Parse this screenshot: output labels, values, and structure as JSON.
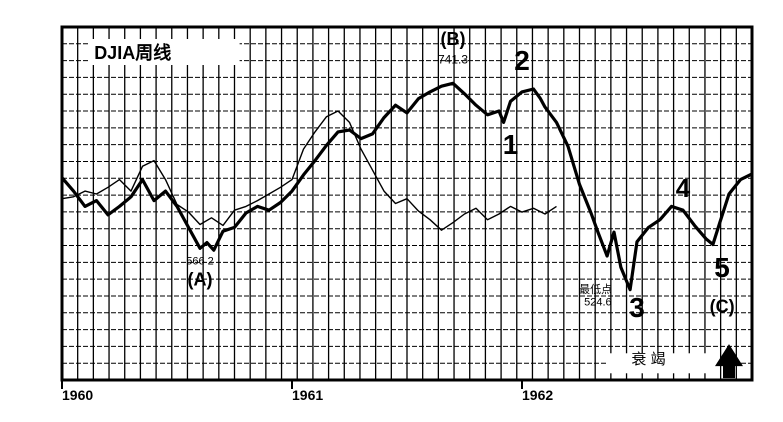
{
  "chart_data": {
    "type": "line",
    "title": "DJIA周线",
    "x_tick_labels": [
      "1960",
      "1961",
      "1962"
    ],
    "series": [
      {
        "values": [
          [
            1960.0,
            642
          ],
          [
            1960.05,
            628
          ],
          [
            1960.1,
            612
          ],
          [
            1960.15,
            618
          ],
          [
            1960.2,
            603
          ],
          [
            1960.25,
            612
          ],
          [
            1960.3,
            622
          ],
          [
            1960.35,
            640
          ],
          [
            1960.4,
            618
          ],
          [
            1960.45,
            628
          ],
          [
            1960.5,
            612
          ],
          [
            1960.55,
            590
          ],
          [
            1960.6,
            568
          ],
          [
            1960.63,
            574
          ],
          [
            1960.66,
            566
          ],
          [
            1960.7,
            586
          ],
          [
            1960.75,
            590
          ],
          [
            1960.8,
            605
          ],
          [
            1960.85,
            612
          ],
          [
            1960.9,
            608
          ],
          [
            1960.95,
            616
          ],
          [
            1961.0,
            628
          ],
          [
            1961.05,
            645
          ],
          [
            1961.1,
            660
          ],
          [
            1961.15,
            676
          ],
          [
            1961.2,
            690
          ],
          [
            1961.25,
            692
          ],
          [
            1961.3,
            683
          ],
          [
            1961.35,
            688
          ],
          [
            1961.4,
            705
          ],
          [
            1961.45,
            718
          ],
          [
            1961.5,
            710
          ],
          [
            1961.55,
            725
          ],
          [
            1961.6,
            732
          ],
          [
            1961.65,
            738
          ],
          [
            1961.7,
            741
          ],
          [
            1961.75,
            730
          ],
          [
            1961.8,
            718
          ],
          [
            1961.85,
            708
          ],
          [
            1961.9,
            712
          ],
          [
            1961.92,
            700
          ],
          [
            1961.95,
            722
          ],
          [
            1962.0,
            732
          ],
          [
            1962.05,
            735
          ],
          [
            1962.08,
            725
          ],
          [
            1962.1,
            716
          ],
          [
            1962.15,
            700
          ],
          [
            1962.2,
            675
          ],
          [
            1962.25,
            635
          ],
          [
            1962.3,
            605
          ],
          [
            1962.33,
            585
          ],
          [
            1962.37,
            560
          ],
          [
            1962.4,
            585
          ],
          [
            1962.43,
            548
          ],
          [
            1962.47,
            524.6
          ],
          [
            1962.5,
            575
          ],
          [
            1962.55,
            590
          ],
          [
            1962.6,
            598
          ],
          [
            1962.65,
            612
          ],
          [
            1962.7,
            608
          ],
          [
            1962.75,
            592
          ],
          [
            1962.8,
            578
          ],
          [
            1962.83,
            572
          ],
          [
            1962.86,
            595
          ],
          [
            1962.9,
            625
          ],
          [
            1962.95,
            640
          ],
          [
            1963.0,
            646
          ]
        ]
      },
      {
        "values": [
          [
            1960.0,
            620
          ],
          [
            1960.05,
            622
          ],
          [
            1960.1,
            628
          ],
          [
            1960.15,
            625
          ],
          [
            1960.2,
            632
          ],
          [
            1960.25,
            640
          ],
          [
            1960.3,
            628
          ],
          [
            1960.35,
            654
          ],
          [
            1960.4,
            660
          ],
          [
            1960.45,
            640
          ],
          [
            1960.5,
            614
          ],
          [
            1960.55,
            606
          ],
          [
            1960.6,
            593
          ],
          [
            1960.65,
            600
          ],
          [
            1960.7,
            592
          ],
          [
            1960.75,
            608
          ],
          [
            1960.8,
            612
          ],
          [
            1960.85,
            618
          ],
          [
            1960.9,
            625
          ],
          [
            1960.95,
            632
          ],
          [
            1961.0,
            640
          ],
          [
            1961.05,
            672
          ],
          [
            1961.1,
            690
          ],
          [
            1961.15,
            706
          ],
          [
            1961.2,
            712
          ],
          [
            1961.25,
            700
          ],
          [
            1961.3,
            672
          ],
          [
            1961.35,
            650
          ],
          [
            1961.4,
            628
          ],
          [
            1961.45,
            615
          ],
          [
            1961.5,
            620
          ],
          [
            1961.55,
            607
          ],
          [
            1961.6,
            598
          ],
          [
            1961.65,
            587
          ],
          [
            1961.7,
            595
          ],
          [
            1961.75,
            604
          ],
          [
            1961.8,
            610
          ],
          [
            1961.85,
            598
          ],
          [
            1961.9,
            604
          ],
          [
            1961.95,
            612
          ],
          [
            1962.0,
            606
          ],
          [
            1962.05,
            610
          ],
          [
            1962.1,
            604
          ],
          [
            1962.15,
            612
          ]
        ]
      }
    ],
    "annotations": [
      {
        "text": "(B)",
        "x": 1961.7,
        "y": 781
      },
      {
        "text": "741.3",
        "x": 1961.7,
        "y": 762
      },
      {
        "text": "2",
        "x": 1962.0,
        "y": 755
      },
      {
        "text": "1",
        "x": 1961.95,
        "y": 667
      },
      {
        "text": "4",
        "x": 1962.7,
        "y": 622
      },
      {
        "text": "566 2",
        "x": 1960.6,
        "y": 551
      },
      {
        "text": "(A)",
        "x": 1960.6,
        "y": 529
      },
      {
        "text": "最低点",
        "x": 1962.32,
        "y": 521
      },
      {
        "text": "524.6",
        "x": 1962.33,
        "y": 508
      },
      {
        "text": "3",
        "x": 1962.5,
        "y": 496
      },
      {
        "text": "5",
        "x": 1962.87,
        "y": 538
      },
      {
        "text": "(C)",
        "x": 1962.87,
        "y": 501
      },
      {
        "text": "衰   竭",
        "x": 1962.55,
        "y": 447
      }
    ],
    "xlim": [
      1960.0,
      1963.0
    ],
    "ylim": [
      430,
      800
    ],
    "grid": true,
    "colors": {
      "line": "#000000",
      "grid": "#000000",
      "background": "#ffffff"
    }
  }
}
